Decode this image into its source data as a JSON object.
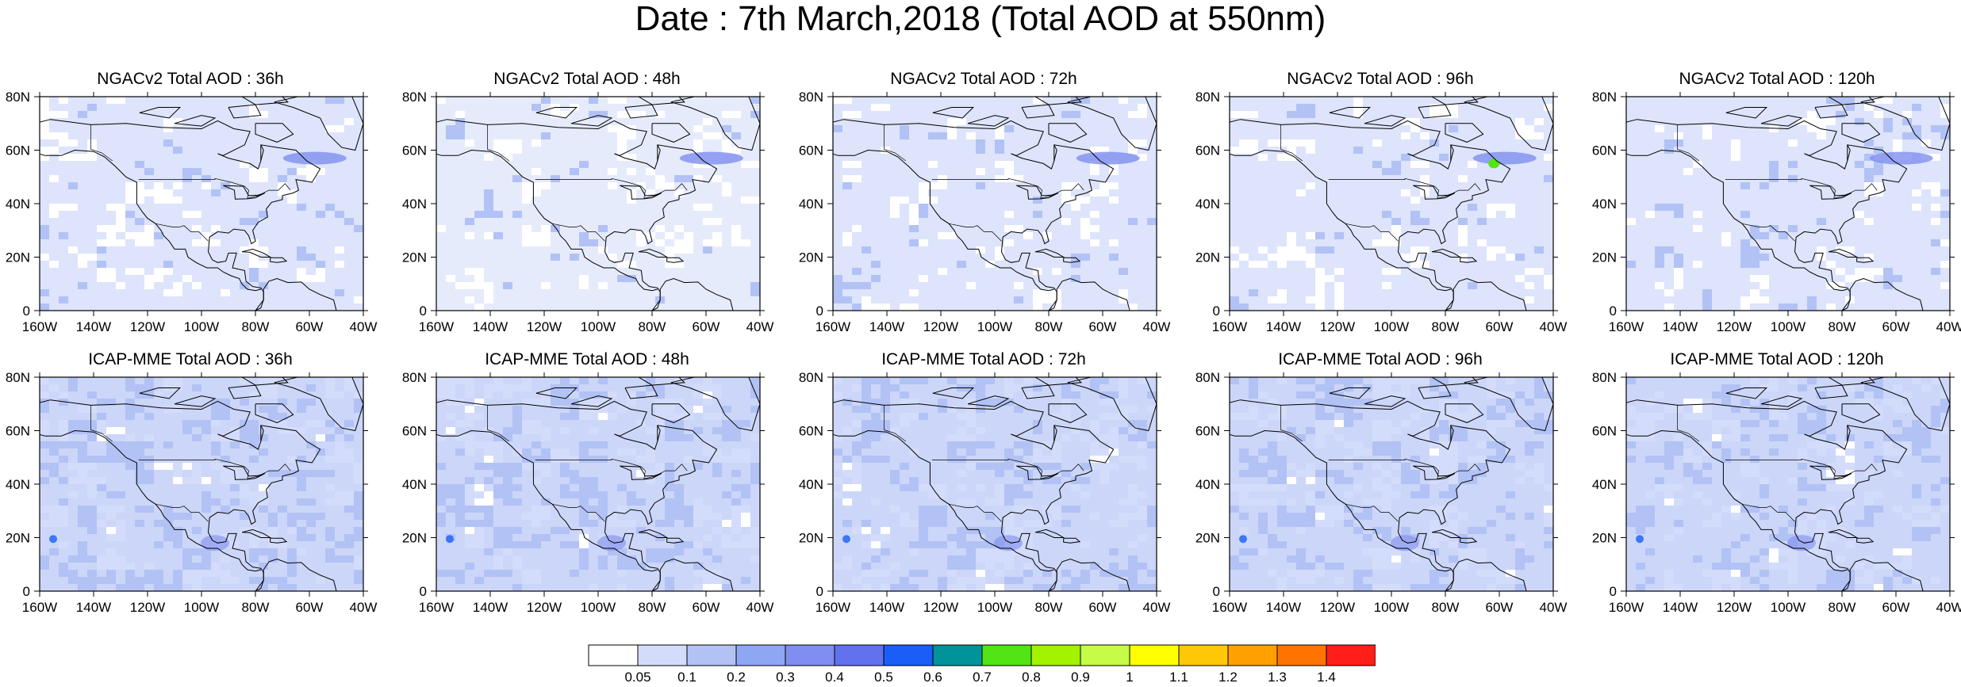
{
  "title": "Date : 7th March,2018 (Total AOD at 550nm)",
  "panels": [
    {
      "title": "NGACv2 Total AOD : 36h",
      "model": "NGACv2",
      "lead": "36h"
    },
    {
      "title": "NGACv2 Total AOD : 48h",
      "model": "NGACv2",
      "lead": "48h"
    },
    {
      "title": "NGACv2 Total AOD : 72h",
      "model": "NGACv2",
      "lead": "72h"
    },
    {
      "title": "NGACv2 Total AOD : 96h",
      "model": "NGACv2",
      "lead": "96h"
    },
    {
      "title": "NGACv2 Total AOD : 120h",
      "model": "NGACv2",
      "lead": "120h"
    },
    {
      "title": "ICAP-MME Total AOD : 36h",
      "model": "ICAP-MME",
      "lead": "36h"
    },
    {
      "title": "ICAP-MME Total AOD : 48h",
      "model": "ICAP-MME",
      "lead": "48h"
    },
    {
      "title": "ICAP-MME Total AOD : 72h",
      "model": "ICAP-MME",
      "lead": "72h"
    },
    {
      "title": "ICAP-MME Total AOD : 96h",
      "model": "ICAP-MME",
      "lead": "96h"
    },
    {
      "title": "ICAP-MME Total AOD : 120h",
      "model": "ICAP-MME",
      "lead": "120h"
    }
  ],
  "chart_data": {
    "type": "heatmap",
    "panel_grid": {
      "rows": 2,
      "cols": 5
    },
    "x_ticks": [
      "160W",
      "140W",
      "120W",
      "100W",
      "80W",
      "60W",
      "40W"
    ],
    "x_values": [
      -160,
      -140,
      -120,
      -100,
      -80,
      -60,
      -40
    ],
    "xlim": [
      -160,
      -40
    ],
    "y_ticks": [
      "0",
      "20N",
      "40N",
      "60N",
      "80N"
    ],
    "y_values": [
      0,
      20,
      40,
      60,
      80
    ],
    "ylim": [
      0,
      80
    ],
    "grid": false,
    "colorbar": {
      "placement": "bottom",
      "labels": [
        "0.05",
        "0.1",
        "0.2",
        "0.3",
        "0.4",
        "0.5",
        "0.6",
        "0.7",
        "0.8",
        "0.9",
        "1",
        "1.1",
        "1.2",
        "1.3",
        "1.4"
      ],
      "colors": [
        "#ffffff",
        "#d3dcfa",
        "#b2c2f5",
        "#8fa6f3",
        "#7f8ef0",
        "#6272ee",
        "#1a5ef7",
        "#00939a",
        "#52e414",
        "#a3f200",
        "#c6fb47",
        "#ffff00",
        "#ffc806",
        "#ffa000",
        "#ff7400",
        "#ff1e18"
      ]
    },
    "fields": {
      "NGACv2_36h": {
        "background": "#dde4fb",
        "notes_hotspot": [
          -60,
          57
        ]
      },
      "NGACv2_48h": {
        "background": "#e6ebfc"
      },
      "NGACv2_72h": {
        "background": "#dde4fb"
      },
      "NGACv2_96h": {
        "background": "#dde4fb"
      },
      "NGACv2_120h": {
        "background": "#dde4fb"
      },
      "ICAP-MME_36h": {
        "background": "#ccd6f8"
      },
      "ICAP-MME_48h": {
        "background": "#ccd6f8"
      },
      "ICAP-MME_72h": {
        "background": "#ccd6f8"
      },
      "ICAP-MME_96h": {
        "background": "#ccd6f8"
      },
      "ICAP-MME_120h": {
        "background": "#ccd6f8"
      }
    }
  }
}
